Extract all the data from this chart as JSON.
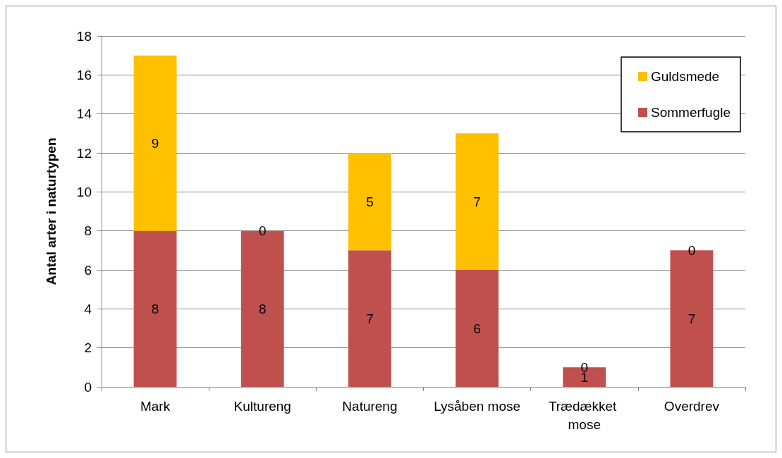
{
  "chart_data": {
    "type": "bar",
    "stacked": true,
    "ylabel": "Antal arter i naturtypen",
    "categories": [
      "Mark",
      "Kultureng",
      "Natureng",
      "Lysåben mose",
      "Trædækket mose",
      "Overdrev"
    ],
    "series": [
      {
        "name": "Sommerfugle",
        "color": "#c0504d",
        "values": [
          8,
          8,
          7,
          6,
          1,
          7
        ]
      },
      {
        "name": "Guldsmede",
        "color": "#ffc000",
        "values": [
          9,
          0,
          5,
          7,
          0,
          0
        ]
      }
    ],
    "ylim": [
      0,
      18
    ],
    "yticks": [
      0,
      2,
      4,
      6,
      8,
      10,
      12,
      14,
      16,
      18
    ],
    "grid": "y",
    "legend": "top right",
    "data_labels": true
  }
}
